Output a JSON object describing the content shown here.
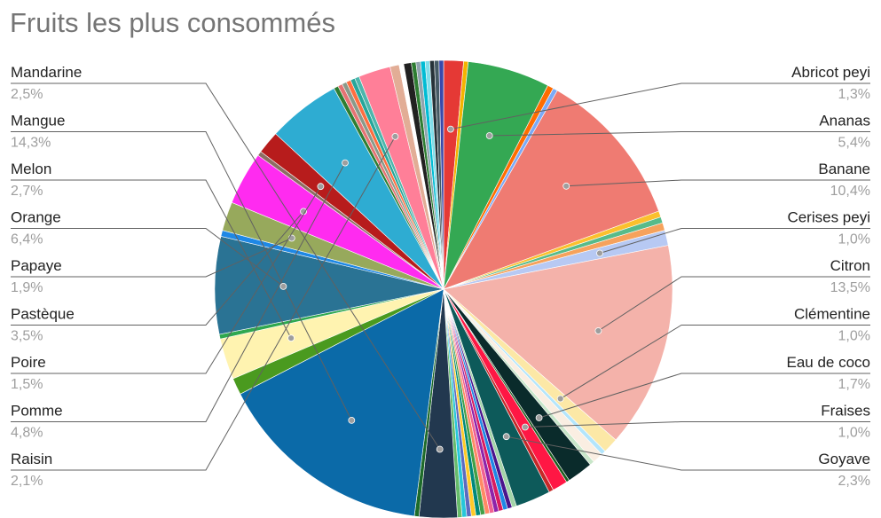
{
  "chart_data": {
    "type": "pie",
    "title": "Fruits les plus consommés",
    "start_angle_deg": 0,
    "direction": "clockwise",
    "labeled_slices": [
      {
        "name": "Abricot peyi",
        "percent_label": "1,3%",
        "value": 1.3,
        "color": "#e53935",
        "side": "right"
      },
      {
        "name": "Ananas",
        "percent_label": "5,4%",
        "value": 5.4,
        "color": "#34a853",
        "side": "right"
      },
      {
        "name": "Banane",
        "percent_label": "10,4%",
        "value": 10.4,
        "color": "#ef7b72",
        "side": "right"
      },
      {
        "name": "Cerises peyi",
        "percent_label": "1,0%",
        "value": 1.0,
        "color": "#b7c9f3",
        "side": "right"
      },
      {
        "name": "Citron",
        "percent_label": "13,5%",
        "value": 13.5,
        "color": "#f4b2aa",
        "side": "right"
      },
      {
        "name": "Clémentine",
        "percent_label": "1,0%",
        "value": 1.0,
        "color": "#fce8a6",
        "side": "right"
      },
      {
        "name": "Eau de coco",
        "percent_label": "1,7%",
        "value": 1.7,
        "color": "#0a2b2b",
        "side": "right"
      },
      {
        "name": "Fraises",
        "percent_label": "1,0%",
        "value": 1.0,
        "color": "#ff1744",
        "side": "right"
      },
      {
        "name": "Goyave",
        "percent_label": "2,3%",
        "value": 2.3,
        "color": "#0d5a5a",
        "side": "right"
      },
      {
        "name": "Mandarine",
        "percent_label": "2,5%",
        "value": 2.5,
        "color": "#22384f",
        "side": "left"
      },
      {
        "name": "Mangue",
        "percent_label": "14,3%",
        "value": 14.3,
        "color": "#0b6aa8",
        "side": "left"
      },
      {
        "name": "Melon",
        "percent_label": "2,7%",
        "value": 2.7,
        "color": "#fff3b0",
        "side": "left"
      },
      {
        "name": "Orange",
        "percent_label": "6,4%",
        "value": 6.4,
        "color": "#2a7394",
        "side": "left"
      },
      {
        "name": "Papaye",
        "percent_label": "1,9%",
        "value": 1.9,
        "color": "#97a95c",
        "side": "left"
      },
      {
        "name": "Pastèque",
        "percent_label": "3,5%",
        "value": 3.5,
        "color": "#ff2bf0",
        "side": "left"
      },
      {
        "name": "Poire",
        "percent_label": "1,5%",
        "value": 1.5,
        "color": "#b71c1c",
        "side": "left"
      },
      {
        "name": "Pomme",
        "percent_label": "4,8%",
        "value": 4.8,
        "color": "#2eacd2",
        "side": "left"
      },
      {
        "name": "Raisin",
        "percent_label": "2,1%",
        "value": 2.1,
        "color": "#ff7f98",
        "side": "left"
      }
    ],
    "slices": [
      {
        "label": "Abricot peyi",
        "value": 1.3,
        "color": "#e53935"
      },
      {
        "label": "",
        "value": 0.3,
        "color": "#f4b400"
      },
      {
        "label": "Ananas",
        "value": 5.4,
        "color": "#34a853"
      },
      {
        "label": "",
        "value": 0.4,
        "color": "#ff6d00"
      },
      {
        "label": "",
        "value": 0.3,
        "color": "#7baaf7"
      },
      {
        "label": "Banane",
        "value": 10.4,
        "color": "#ef7b72"
      },
      {
        "label": "",
        "value": 0.4,
        "color": "#fbc02d"
      },
      {
        "label": "",
        "value": 0.4,
        "color": "#57bb8a"
      },
      {
        "label": "",
        "value": 0.5,
        "color": "#f6a25c"
      },
      {
        "label": "Cerises peyi",
        "value": 1.0,
        "color": "#b7c9f3"
      },
      {
        "label": "Citron",
        "value": 13.5,
        "color": "#f4b2aa"
      },
      {
        "label": "Clémentine",
        "value": 1.0,
        "color": "#fce8a6"
      },
      {
        "label": "",
        "value": 0.3,
        "color": "#b3e5fc"
      },
      {
        "label": "",
        "value": 0.7,
        "color": "#faeee2"
      },
      {
        "label": "",
        "value": 0.3,
        "color": "#c8e6c9"
      },
      {
        "label": "Eau de coco",
        "value": 1.7,
        "color": "#0a2b2b"
      },
      {
        "label": "",
        "value": 0.2,
        "color": "#1b5e20"
      },
      {
        "label": "Fraises",
        "value": 1.0,
        "color": "#ff1744"
      },
      {
        "label": "",
        "value": 0.3,
        "color": "#c62828"
      },
      {
        "label": "Goyave",
        "value": 2.3,
        "color": "#0d5a5a"
      },
      {
        "label": "",
        "value": 0.3,
        "color": "#a3d4a8"
      },
      {
        "label": "",
        "value": 0.3,
        "color": "#4a148c"
      },
      {
        "label": "",
        "value": 0.3,
        "color": "#1e88e5"
      },
      {
        "label": "",
        "value": 0.3,
        "color": "#d81b60"
      },
      {
        "label": "",
        "value": 0.3,
        "color": "#8e24aa"
      },
      {
        "label": "",
        "value": 0.3,
        "color": "#f06292"
      },
      {
        "label": "",
        "value": 0.3,
        "color": "#ff8a65"
      },
      {
        "label": "",
        "value": 0.3,
        "color": "#43a047"
      },
      {
        "label": "",
        "value": 0.3,
        "color": "#00897b"
      },
      {
        "label": "",
        "value": 0.3,
        "color": "#ffca28"
      },
      {
        "label": "",
        "value": 0.3,
        "color": "#5c6bc0"
      },
      {
        "label": "",
        "value": 0.3,
        "color": "#26c6da"
      },
      {
        "label": "",
        "value": 0.3,
        "color": "#66bb6a"
      },
      {
        "label": "Mandarine",
        "value": 2.5,
        "color": "#22384f"
      },
      {
        "label": "",
        "value": 0.3,
        "color": "#1e6b2a"
      },
      {
        "label": "Mangue",
        "value": 14.3,
        "color": "#0b6aa8"
      },
      {
        "label": "",
        "value": 1.1,
        "color": "#4a9a1f"
      },
      {
        "label": "Melon",
        "value": 2.7,
        "color": "#fff3b0"
      },
      {
        "label": "",
        "value": 0.3,
        "color": "#2fa84f"
      },
      {
        "label": "Orange",
        "value": 6.4,
        "color": "#2a7394"
      },
      {
        "label": "",
        "value": 0.4,
        "color": "#1e88e5"
      },
      {
        "label": "Papaye",
        "value": 1.9,
        "color": "#97a95c"
      },
      {
        "label": "Pastèque",
        "value": 3.5,
        "color": "#ff2bf0"
      },
      {
        "label": "",
        "value": 0.3,
        "color": "#8d6e63"
      },
      {
        "label": "Poire",
        "value": 1.5,
        "color": "#b71c1c"
      },
      {
        "label": "Pomme",
        "value": 4.8,
        "color": "#2eacd2"
      },
      {
        "label": "",
        "value": 0.3,
        "color": "#2e7d32"
      },
      {
        "label": "",
        "value": 0.3,
        "color": "#e57373"
      },
      {
        "label": "",
        "value": 0.3,
        "color": "#8a9a8a"
      },
      {
        "label": "",
        "value": 0.3,
        "color": "#ff6e40"
      },
      {
        "label": "",
        "value": 0.3,
        "color": "#26a69a"
      },
      {
        "label": "",
        "value": 0.3,
        "color": "#4db6ac"
      },
      {
        "label": "Raisin",
        "value": 2.1,
        "color": "#ff7f98"
      },
      {
        "label": "",
        "value": 0.6,
        "color": "#e2ad96"
      },
      {
        "label": "",
        "value": 0.3,
        "color": "#ffffff"
      },
      {
        "label": "",
        "value": 0.5,
        "color": "#212121"
      },
      {
        "label": "",
        "value": 0.3,
        "color": "#2e7d32"
      },
      {
        "label": "",
        "value": 0.3,
        "color": "#90a4ae"
      },
      {
        "label": "",
        "value": 0.3,
        "color": "#00bcd4"
      },
      {
        "label": "",
        "value": 0.3,
        "color": "#80deea"
      },
      {
        "label": "",
        "value": 0.3,
        "color": "#263238"
      },
      {
        "label": "",
        "value": 0.3,
        "color": "#455a64"
      },
      {
        "label": "",
        "value": 0.3,
        "color": "#3949ab"
      }
    ]
  }
}
